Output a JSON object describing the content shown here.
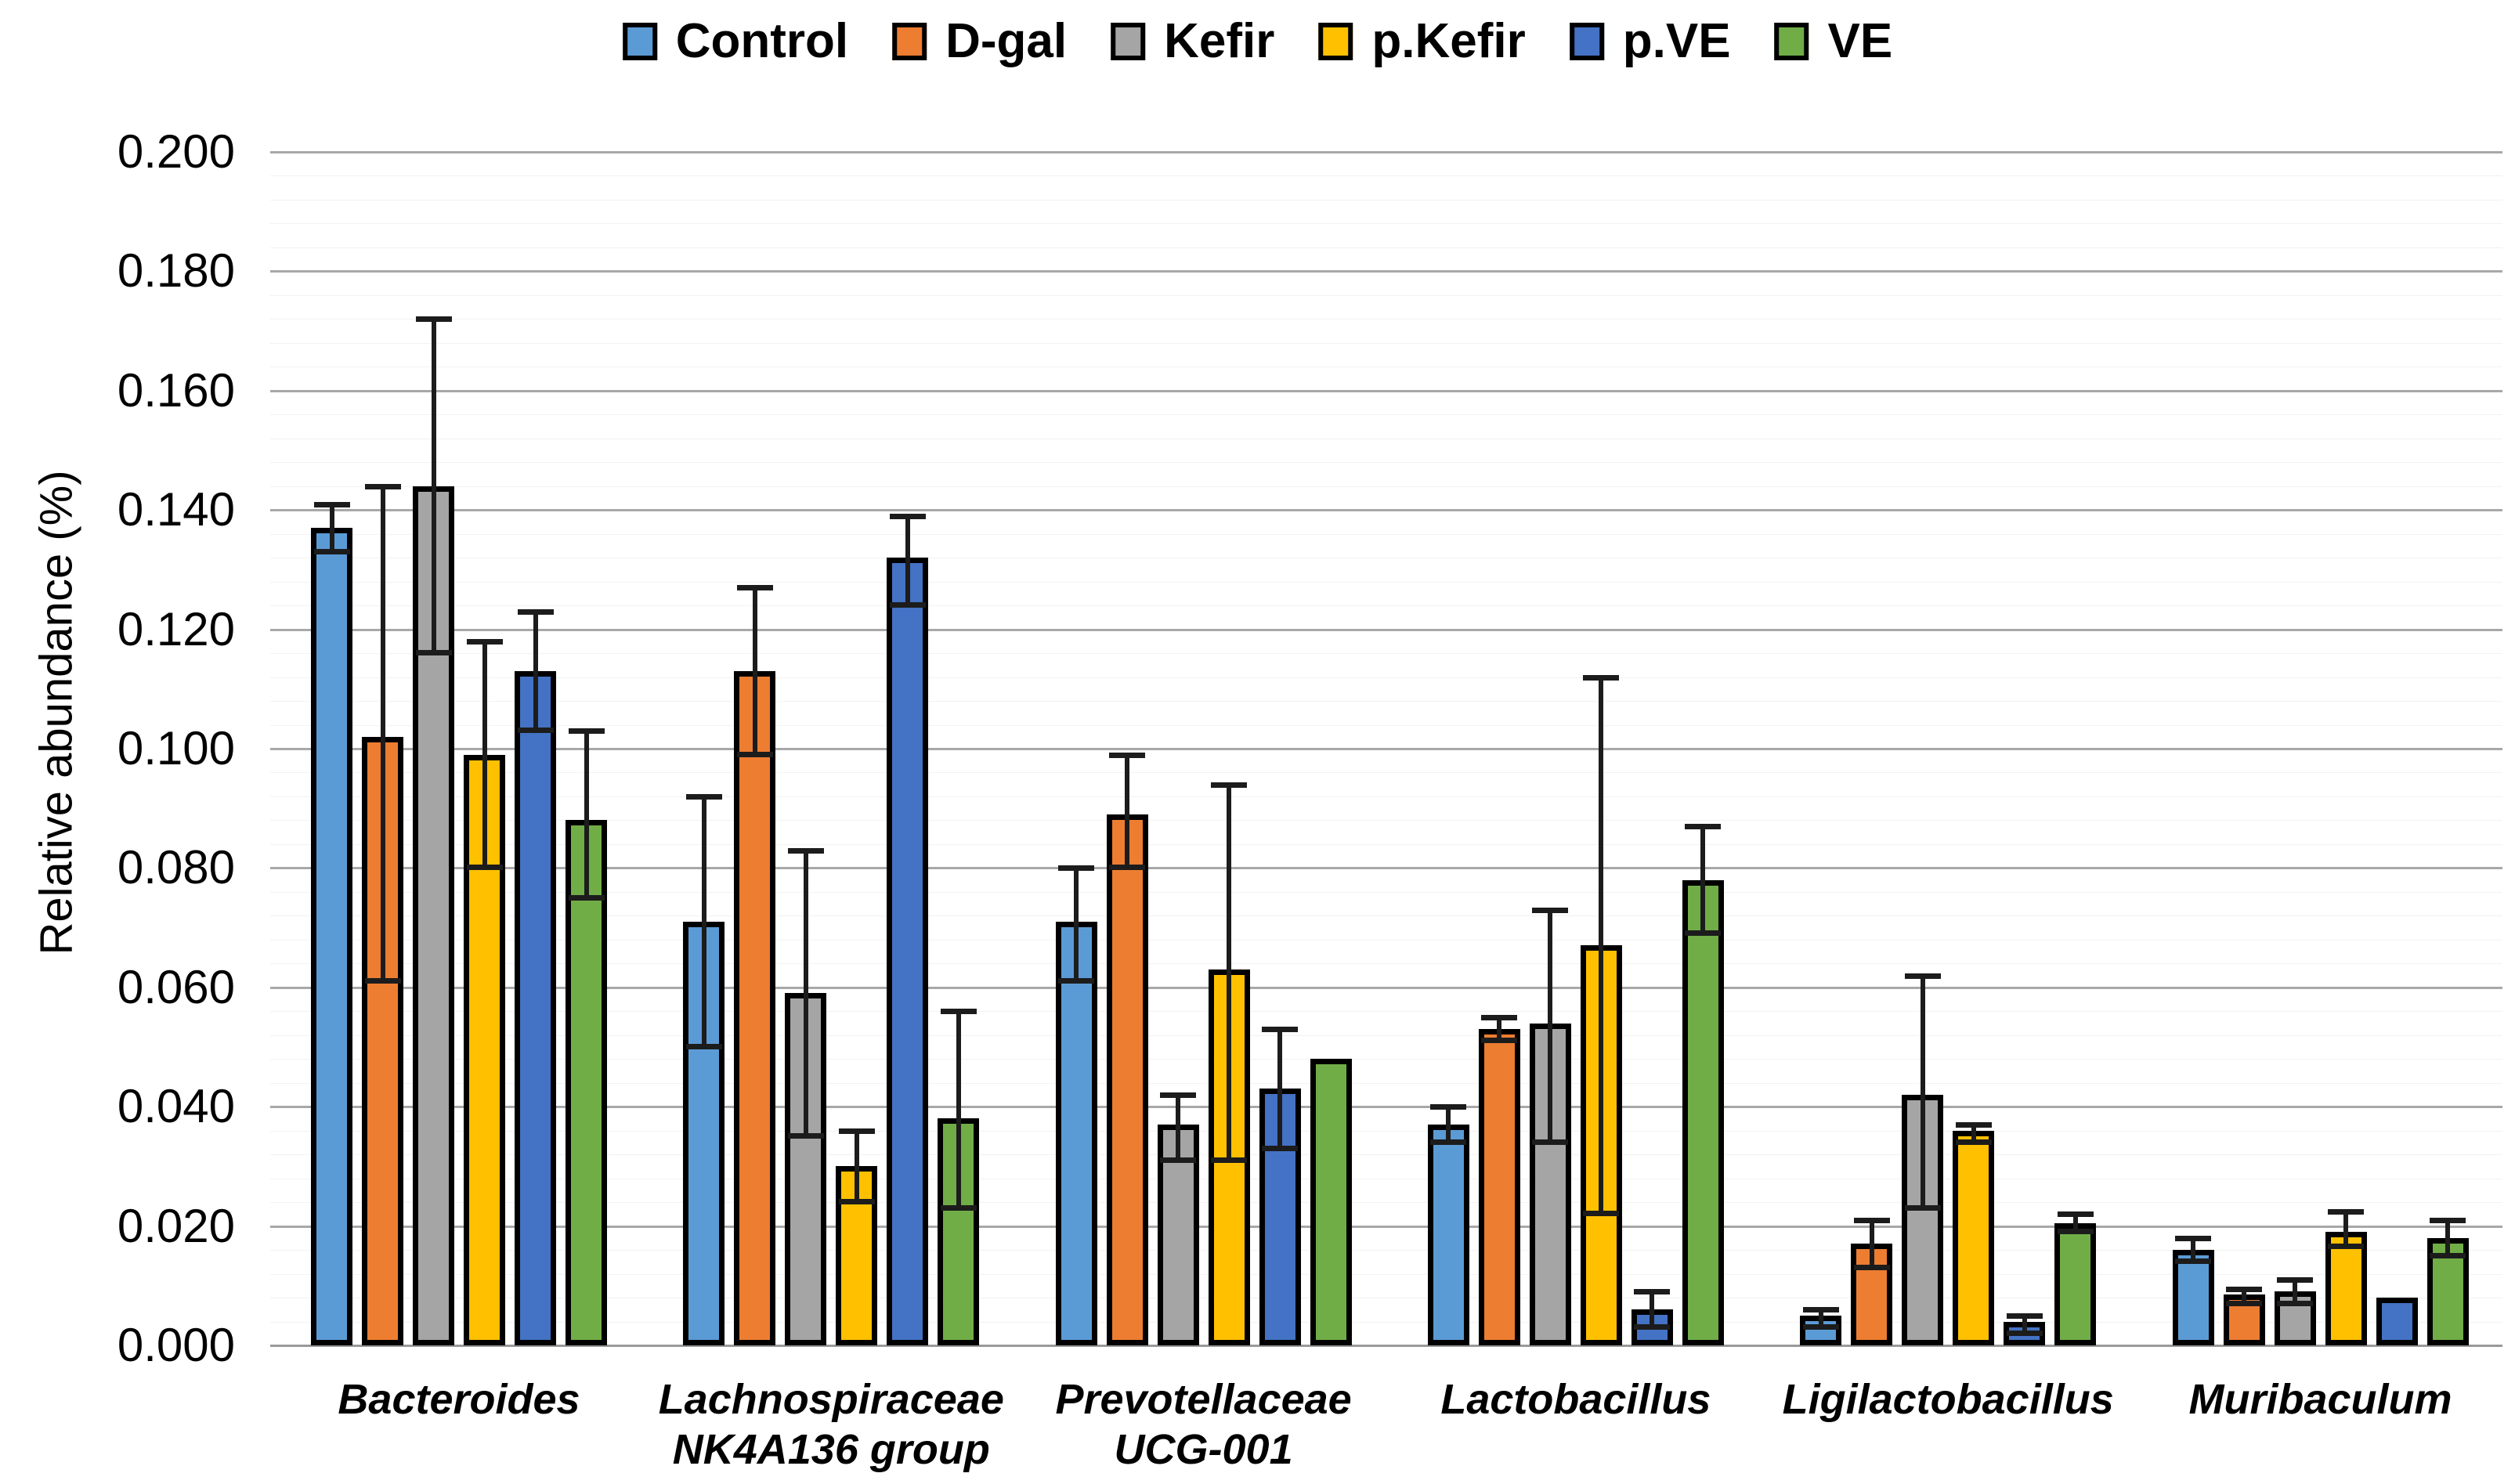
{
  "chart_data": {
    "type": "bar",
    "title": "",
    "xlabel": "",
    "ylabel": "Relative abundance (%)",
    "ylim": [
      0.0,
      0.2
    ],
    "ytick_step": 0.02,
    "ytick_decimals": 3,
    "grid": "horizontal major gridlines on, gray",
    "legend_position": "top-center",
    "bar_outline_color": "#000000",
    "error_bar_color": "#1c1c1c",
    "categories": [
      "Bacteroides",
      "Lachnospiraceae NK4A136 group",
      "Prevotellaceae UCG-001",
      "Lactobacillus",
      "Ligilactobacillus",
      "Muribaculum"
    ],
    "category_label_lines": [
      [
        "Bacteroides"
      ],
      [
        "Lachnospiraceae",
        "NK4A136 group"
      ],
      [
        "Prevotellaceae",
        "UCG-001"
      ],
      [
        "Lactobacillus"
      ],
      [
        "Ligilactobacillus"
      ],
      [
        "Muribaculum"
      ]
    ],
    "series": [
      {
        "name": "Control",
        "color": "#5B9BD5",
        "values": [
          0.137,
          0.071,
          0.071,
          0.037,
          0.005,
          0.016
        ],
        "err_low": [
          0.133,
          0.05,
          0.061,
          0.034,
          0.003,
          0.014
        ],
        "err_high": [
          0.141,
          0.092,
          0.08,
          0.04,
          0.006,
          0.018
        ]
      },
      {
        "name": "D-gal",
        "color": "#ED7D31",
        "values": [
          0.102,
          0.113,
          0.089,
          0.053,
          0.017,
          0.0085
        ],
        "err_low": [
          0.061,
          0.099,
          0.08,
          0.051,
          0.013,
          0.007
        ],
        "err_high": [
          0.144,
          0.127,
          0.099,
          0.055,
          0.021,
          0.0095
        ]
      },
      {
        "name": "Kefir",
        "color": "#A5A5A5",
        "values": [
          0.144,
          0.059,
          0.037,
          0.054,
          0.042,
          0.009
        ],
        "err_low": [
          0.116,
          0.035,
          0.031,
          0.034,
          0.023,
          0.007
        ],
        "err_high": [
          0.172,
          0.083,
          0.042,
          0.073,
          0.062,
          0.011
        ]
      },
      {
        "name": "p.Kefir",
        "color": "#FFC000",
        "values": [
          0.099,
          0.03,
          0.063,
          0.067,
          0.036,
          0.019
        ],
        "err_low": [
          0.08,
          0.024,
          0.031,
          0.022,
          0.034,
          0.0165
        ],
        "err_high": [
          0.118,
          0.036,
          0.094,
          0.112,
          0.037,
          0.0225
        ]
      },
      {
        "name": "p.VE",
        "color": "#4472C4",
        "values": [
          0.113,
          0.132,
          0.043,
          0.006,
          0.004,
          0.008
        ],
        "err_low": [
          0.103,
          0.124,
          0.033,
          0.003,
          0.002,
          null
        ],
        "err_high": [
          0.123,
          0.139,
          0.053,
          0.009,
          0.005,
          null
        ]
      },
      {
        "name": "VE",
        "color": "#70AD47",
        "values": [
          0.088,
          0.038,
          0.048,
          0.078,
          0.0205,
          0.018
        ],
        "err_low": [
          0.075,
          0.023,
          null,
          0.069,
          0.019,
          0.015
        ],
        "err_high": [
          0.103,
          0.056,
          null,
          0.087,
          0.022,
          0.021
        ]
      }
    ]
  }
}
